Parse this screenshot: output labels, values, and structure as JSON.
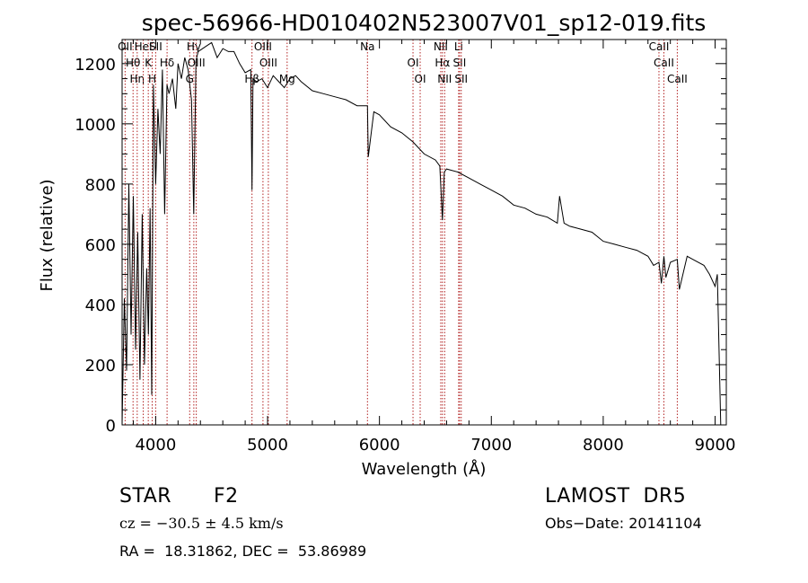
{
  "chart_data": {
    "type": "line",
    "title": "spec-56966-HD010402N523007V01_sp12-019.fits",
    "xlabel": "Wavelength (Å)",
    "ylabel": "Flux (relative)",
    "xlim": [
      3700,
      9100
    ],
    "ylim": [
      0,
      1280
    ],
    "xticks": [
      4000,
      5000,
      6000,
      7000,
      8000,
      9000
    ],
    "yticks": [
      0,
      200,
      400,
      600,
      800,
      1000,
      1200
    ],
    "grid": false,
    "line_color": "#000000",
    "marker_line_color": "#b22222",
    "series": [
      {
        "values_x": [
          3700,
          3720,
          3740,
          3760,
          3780,
          3800,
          3820,
          3840,
          3860,
          3880,
          3900,
          3920,
          3935,
          3950,
          3965,
          3980,
          4000,
          4020,
          4040,
          4060,
          4080,
          4101,
          4120,
          4150,
          4180,
          4200,
          4230,
          4260,
          4290,
          4320,
          4340,
          4360,
          4380,
          4420,
          4460,
          4500,
          4550,
          4600,
          4650,
          4700,
          4750,
          4800,
          4850,
          4861,
          4870,
          4900,
          4950,
          5000,
          5050,
          5100,
          5150,
          5200,
          5250,
          5300,
          5400,
          5500,
          5600,
          5700,
          5800,
          5893,
          5900,
          5950,
          6000,
          6100,
          6200,
          6300,
          6400,
          6500,
          6540,
          6563,
          6580,
          6600,
          6700,
          6800,
          6900,
          7000,
          7100,
          7200,
          7300,
          7400,
          7500,
          7590,
          7610,
          7650,
          7700,
          7800,
          7900,
          8000,
          8100,
          8200,
          8300,
          8400,
          8450,
          8498,
          8520,
          8542,
          8560,
          8600,
          8662,
          8680,
          8750,
          8800,
          8900,
          8950,
          9000,
          9020,
          9050
        ],
        "values_y": [
          0,
          420,
          180,
          800,
          300,
          760,
          250,
          640,
          150,
          700,
          200,
          520,
          300,
          720,
          100,
          1130,
          800,
          1050,
          900,
          1180,
          700,
          1130,
          1100,
          1150,
          1050,
          1200,
          1150,
          1220,
          1180,
          1080,
          700,
          1210,
          1240,
          1250,
          1260,
          1270,
          1220,
          1250,
          1240,
          1240,
          1200,
          1170,
          1180,
          780,
          1150,
          1140,
          1150,
          1120,
          1160,
          1140,
          1120,
          1150,
          1160,
          1140,
          1110,
          1100,
          1090,
          1080,
          1060,
          1060,
          890,
          1040,
          1030,
          990,
          970,
          940,
          900,
          880,
          860,
          680,
          840,
          850,
          840,
          820,
          800,
          780,
          760,
          730,
          720,
          700,
          690,
          670,
          760,
          670,
          660,
          650,
          640,
          610,
          600,
          590,
          580,
          560,
          530,
          540,
          470,
          560,
          490,
          540,
          550,
          450,
          560,
          550,
          530,
          500,
          460,
          500,
          0
        ]
      }
    ],
    "markers": [
      {
        "wl": 3727,
        "label": "OII"
      },
      {
        "wl": 3798,
        "label": "Hθ"
      },
      {
        "wl": 3835,
        "label": "Hη"
      },
      {
        "wl": 3889,
        "label": "HeI"
      },
      {
        "wl": 3934,
        "label": "K"
      },
      {
        "wl": 3969,
        "label": "H"
      },
      {
        "wl": 4000,
        "label": "SII"
      },
      {
        "wl": 4102,
        "label": "Hδ"
      },
      {
        "wl": 4304,
        "label": "G"
      },
      {
        "wl": 4341,
        "label": "Hγ"
      },
      {
        "wl": 4363,
        "label": "OIII"
      },
      {
        "wl": 4861,
        "label": "Hβ"
      },
      {
        "wl": 4959,
        "label": "OIII"
      },
      {
        "wl": 5007,
        "label": "OIII"
      },
      {
        "wl": 5175,
        "label": "Mg"
      },
      {
        "wl": 5893,
        "label": "Na"
      },
      {
        "wl": 6300,
        "label": "OI"
      },
      {
        "wl": 6364,
        "label": "OI"
      },
      {
        "wl": 6548,
        "label": "NII"
      },
      {
        "wl": 6563,
        "label": "Hα"
      },
      {
        "wl": 6583,
        "label": "NII"
      },
      {
        "wl": 6708,
        "label": "Li"
      },
      {
        "wl": 6716,
        "label": "SII"
      },
      {
        "wl": 6731,
        "label": "SII"
      },
      {
        "wl": 8498,
        "label": "CaII"
      },
      {
        "wl": 8542,
        "label": "CaII"
      },
      {
        "wl": 8662,
        "label": "CaII"
      }
    ]
  },
  "info": {
    "object_class": "STAR",
    "subclass": "F2",
    "survey": "LAMOST  DR5",
    "velocity": "cz = −30.5 ± 4.5 km/s",
    "obs_date": "Obs−Date: 20141104",
    "coords": "RA =  18.31862, DEC =  53.86989"
  }
}
